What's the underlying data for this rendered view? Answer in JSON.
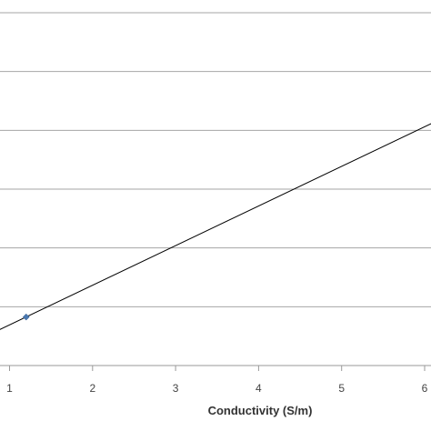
{
  "chart_data": {
    "type": "scatter",
    "xlabel": "Conductivity (S/m)",
    "ylabel": "",
    "title": "",
    "x_ticks": [
      1,
      2,
      3,
      4,
      5,
      6
    ],
    "xlim": [
      0.87,
      6.1
    ],
    "grid": true,
    "gridline_count": 6,
    "series": [
      {
        "points": [
          {
            "x": 1.2
          }
        ],
        "color": "#4a78b0",
        "marker": "diamond"
      }
    ],
    "trendline": {
      "color": "#000000",
      "x_start": 0.87,
      "x_end": 6.1
    }
  }
}
